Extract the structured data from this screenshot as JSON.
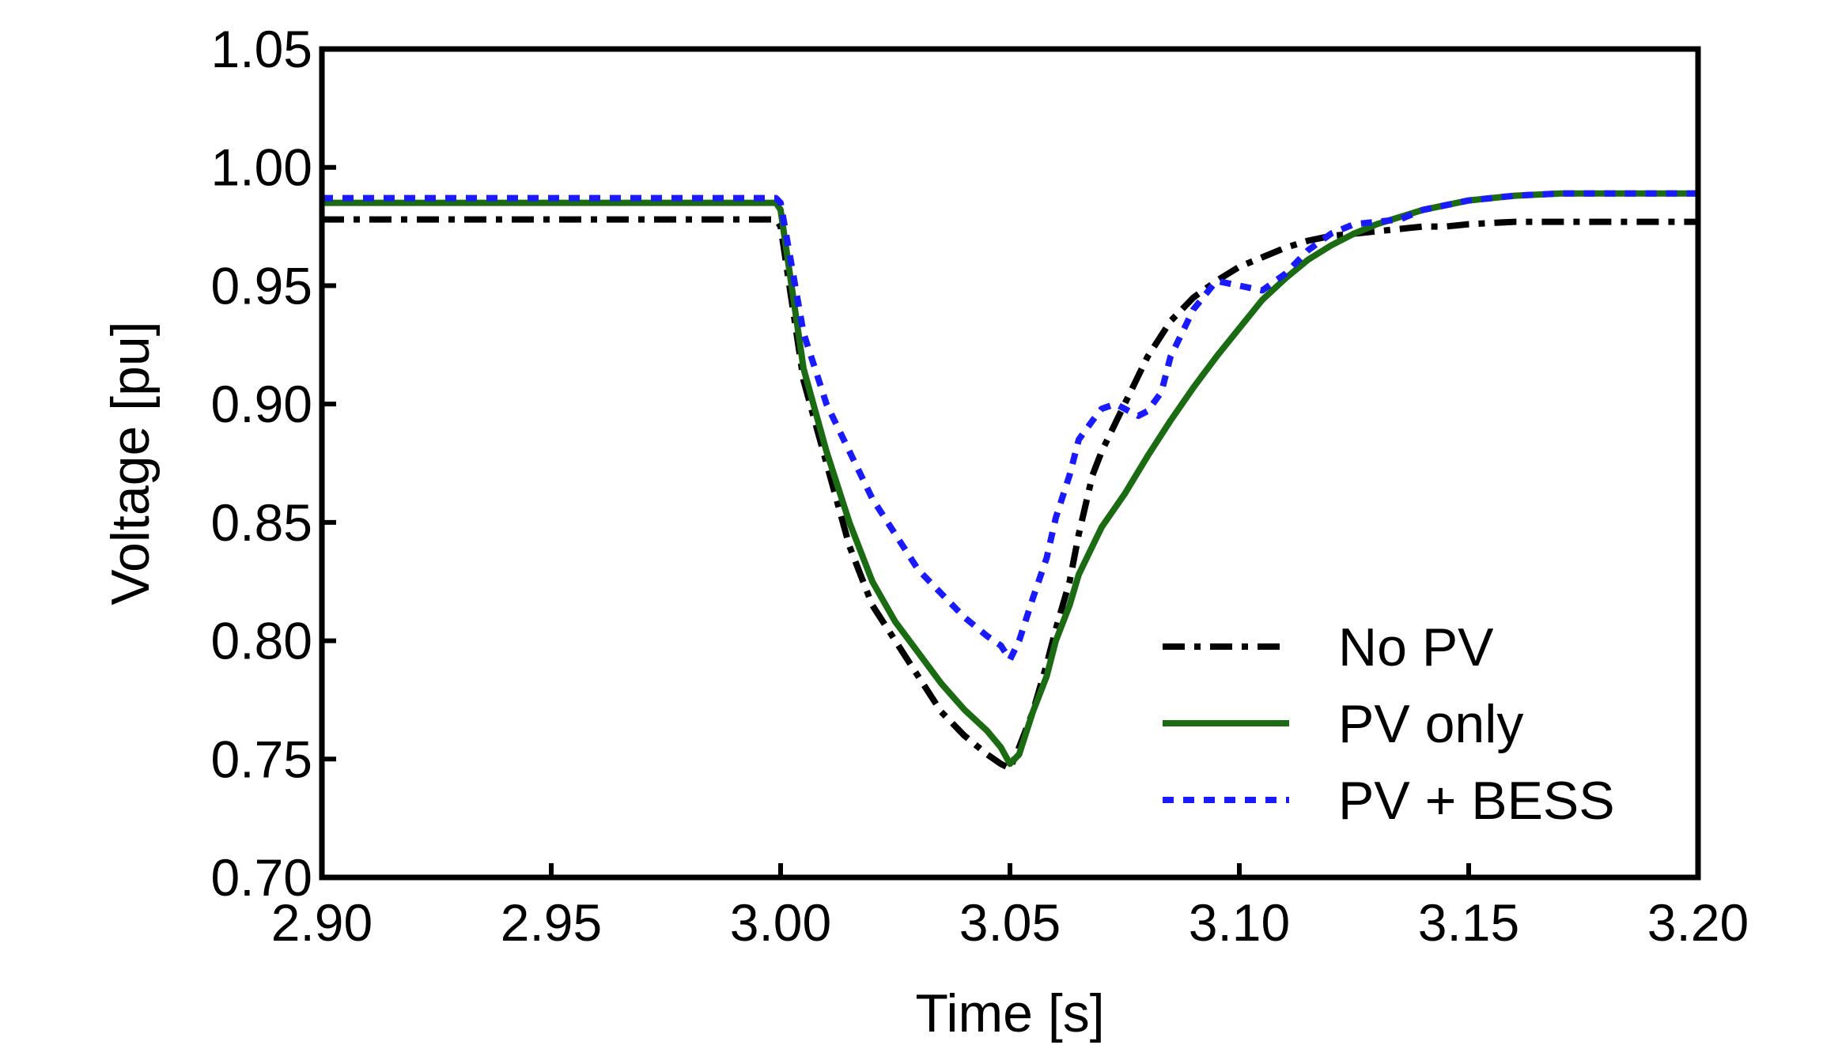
{
  "chart_data": {
    "type": "line",
    "title": "",
    "xlabel": "Time [s]",
    "ylabel": "Voltage [pu]",
    "xlim": [
      2.9,
      3.2
    ],
    "ylim": [
      0.7,
      1.05
    ],
    "xticks": [
      "2.90",
      "2.95",
      "3.00",
      "3.05",
      "3.10",
      "3.15",
      "3.20"
    ],
    "yticks": [
      "0.70",
      "0.75",
      "0.80",
      "0.85",
      "0.90",
      "0.95",
      "1.00",
      "1.05"
    ],
    "grid": false,
    "legend_position": "bottom-right",
    "series": [
      {
        "name": "No PV",
        "color": "#000000",
        "style": "dash-dot",
        "x": [
          2.9,
          2.95,
          2.999,
          3.0,
          3.005,
          3.01,
          3.015,
          3.02,
          3.025,
          3.03,
          3.035,
          3.04,
          3.045,
          3.048,
          3.05,
          3.052,
          3.055,
          3.058,
          3.06,
          3.063,
          3.065,
          3.068,
          3.07,
          3.075,
          3.08,
          3.085,
          3.09,
          3.095,
          3.1,
          3.105,
          3.11,
          3.115,
          3.12,
          3.125,
          3.13,
          3.135,
          3.14,
          3.145,
          3.15,
          3.16,
          3.17,
          3.18,
          3.19,
          3.2
        ],
        "y": [
          0.978,
          0.978,
          0.978,
          0.975,
          0.91,
          0.875,
          0.84,
          0.815,
          0.8,
          0.785,
          0.77,
          0.76,
          0.752,
          0.748,
          0.746,
          0.755,
          0.77,
          0.79,
          0.805,
          0.825,
          0.845,
          0.87,
          0.88,
          0.9,
          0.92,
          0.935,
          0.945,
          0.952,
          0.958,
          0.962,
          0.966,
          0.969,
          0.971,
          0.972,
          0.973,
          0.974,
          0.975,
          0.975,
          0.976,
          0.977,
          0.977,
          0.977,
          0.977,
          0.977
        ]
      },
      {
        "name": "PV only",
        "color": "#1a6b12",
        "style": "solid",
        "x": [
          2.9,
          2.95,
          2.999,
          3.0,
          3.005,
          3.01,
          3.015,
          3.02,
          3.025,
          3.03,
          3.035,
          3.04,
          3.045,
          3.048,
          3.05,
          3.052,
          3.055,
          3.058,
          3.06,
          3.063,
          3.065,
          3.068,
          3.07,
          3.075,
          3.08,
          3.085,
          3.09,
          3.095,
          3.1,
          3.105,
          3.11,
          3.115,
          3.12,
          3.125,
          3.13,
          3.135,
          3.14,
          3.145,
          3.15,
          3.16,
          3.17,
          3.18,
          3.19,
          3.2
        ],
        "y": [
          0.985,
          0.985,
          0.985,
          0.982,
          0.915,
          0.88,
          0.85,
          0.825,
          0.808,
          0.795,
          0.782,
          0.771,
          0.762,
          0.755,
          0.748,
          0.752,
          0.77,
          0.785,
          0.8,
          0.815,
          0.828,
          0.84,
          0.848,
          0.862,
          0.878,
          0.893,
          0.907,
          0.92,
          0.932,
          0.944,
          0.953,
          0.961,
          0.967,
          0.972,
          0.976,
          0.979,
          0.982,
          0.984,
          0.986,
          0.988,
          0.989,
          0.989,
          0.989,
          0.989
        ]
      },
      {
        "name": "PV + BESS",
        "color": "#1a1aff",
        "style": "dotted",
        "x": [
          2.9,
          2.95,
          2.999,
          3.0,
          3.005,
          3.01,
          3.015,
          3.02,
          3.025,
          3.03,
          3.035,
          3.04,
          3.045,
          3.048,
          3.05,
          3.052,
          3.055,
          3.058,
          3.06,
          3.063,
          3.065,
          3.068,
          3.07,
          3.073,
          3.075,
          3.078,
          3.08,
          3.083,
          3.085,
          3.09,
          3.095,
          3.1,
          3.105,
          3.11,
          3.115,
          3.12,
          3.125,
          3.13,
          3.135,
          3.14,
          3.15,
          3.16,
          3.17,
          3.18,
          3.19,
          3.2
        ],
        "y": [
          0.987,
          0.987,
          0.987,
          0.985,
          0.93,
          0.9,
          0.88,
          0.86,
          0.845,
          0.83,
          0.82,
          0.81,
          0.802,
          0.798,
          0.792,
          0.8,
          0.818,
          0.835,
          0.852,
          0.87,
          0.885,
          0.893,
          0.898,
          0.9,
          0.898,
          0.895,
          0.897,
          0.905,
          0.92,
          0.94,
          0.952,
          0.95,
          0.948,
          0.955,
          0.965,
          0.972,
          0.976,
          0.977,
          0.978,
          0.982,
          0.986,
          0.988,
          0.989,
          0.989,
          0.989,
          0.989
        ]
      }
    ]
  }
}
